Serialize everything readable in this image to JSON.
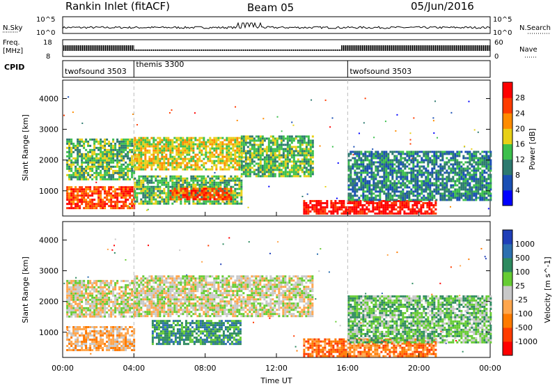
{
  "header": {
    "station": "Rankin Inlet (fitACF)",
    "beam": "Beam 05",
    "date": "05/Jun/2016"
  },
  "strip_panels": {
    "nsky": {
      "left_label": "N.Sky",
      "left_ticks": [
        "10^5",
        "10^0"
      ],
      "right_ticks": [
        "10^5",
        "10^0"
      ],
      "right_label": "N.Search"
    },
    "freq": {
      "left_label": "Freq.",
      "left_unit": "[MHz]",
      "left_ticks": [
        "18",
        "8"
      ],
      "right_ticks": [
        "60",
        "0"
      ],
      "right_label": "Nave"
    },
    "cpid": {
      "label": "CPID",
      "segments": [
        {
          "name": "twofsound 3503",
          "start_hour": 0,
          "end_hour": 4
        },
        {
          "name": "themis 3300",
          "start_hour": 4,
          "end_hour": 16
        },
        {
          "name": "twofsound 3503",
          "start_hour": 16,
          "end_hour": 24
        }
      ]
    }
  },
  "chart_data": [
    {
      "type": "heatmap",
      "title": "Power",
      "ylabel": "Slant Range [km]",
      "y_ticks": [
        1000,
        2000,
        3000,
        4000
      ],
      "ylim": [
        180,
        4600
      ],
      "xlim_hours": [
        0,
        24
      ],
      "colorbar": {
        "label": "Power [dB]",
        "tick_labels": [
          "28",
          "24",
          "20",
          "16",
          "12",
          "8",
          "4"
        ],
        "colors": [
          "#0000ff",
          "#1a4fb4",
          "#2d7a6f",
          "#3cc04c",
          "#e8d017",
          "#ff8c00",
          "#ff3c00",
          "#ff0000"
        ]
      },
      "regions": [
        {
          "from_hour": 0.2,
          "to_hour": 4.0,
          "range_km": [
            450,
            1150
          ],
          "level": 6
        },
        {
          "from_hour": 0.2,
          "to_hour": 4.0,
          "range_km": [
            1400,
            2700
          ],
          "level": 3
        },
        {
          "from_hour": 4.0,
          "to_hour": 10.0,
          "range_km": [
            1700,
            2750
          ],
          "level": 4
        },
        {
          "from_hour": 4.0,
          "to_hour": 10.0,
          "range_km": [
            600,
            1500
          ],
          "level": 3
        },
        {
          "from_hour": 6.0,
          "to_hour": 9.5,
          "range_km": [
            700,
            1100
          ],
          "level": 6
        },
        {
          "from_hour": 10.0,
          "to_hour": 14.0,
          "range_km": [
            1500,
            2800
          ],
          "level": 3
        },
        {
          "from_hour": 13.5,
          "to_hour": 21.0,
          "range_km": [
            250,
            700
          ],
          "level": 7
        },
        {
          "from_hour": 16.0,
          "to_hour": 24.0,
          "range_km": [
            700,
            2300
          ],
          "level": 2
        }
      ]
    },
    {
      "type": "heatmap",
      "title": "Velocity",
      "ylabel": "Slant Range [km]",
      "xlabel": "Time UT",
      "x_ticks": [
        "00:00",
        "04:00",
        "08:00",
        "12:00",
        "16:00",
        "20:00",
        "00:00"
      ],
      "y_ticks": [
        1000,
        2000,
        3000,
        4000
      ],
      "ylim": [
        180,
        4600
      ],
      "xlim_hours": [
        0,
        24
      ],
      "colorbar": {
        "label": "Velocity [m s^-1]",
        "tick_labels": [
          "1000",
          "500",
          "100",
          "25",
          "-25",
          "-100",
          "-500",
          "-1000"
        ],
        "colors": [
          "#ff0000",
          "#ff3c00",
          "#ff7a00",
          "#ffa64d",
          "#c8c8c8",
          "#66cc33",
          "#2d8a5f",
          "#2c6fb0",
          "#1f3fb8"
        ]
      },
      "regions": [
        {
          "from_hour": 0.2,
          "to_hour": 4.0,
          "range_km": [
            1500,
            2700
          ],
          "level": 4
        },
        {
          "from_hour": 4.0,
          "to_hour": 14.0,
          "range_km": [
            1500,
            2850
          ],
          "level": 4
        },
        {
          "from_hour": 0.2,
          "to_hour": 4.0,
          "range_km": [
            450,
            1200
          ],
          "level": 3
        },
        {
          "from_hour": 5.0,
          "to_hour": 10.0,
          "range_km": [
            600,
            1400
          ],
          "level": 6
        },
        {
          "from_hour": 13.5,
          "to_hour": 21.0,
          "range_km": [
            250,
            800
          ],
          "level": 2
        },
        {
          "from_hour": 16.0,
          "to_hour": 24.0,
          "range_km": [
            700,
            2200
          ],
          "level": 5
        }
      ]
    }
  ],
  "colors": {
    "axes": "#000000",
    "dashed_marker": "#bbbbbb",
    "empty": "#ffffff"
  }
}
